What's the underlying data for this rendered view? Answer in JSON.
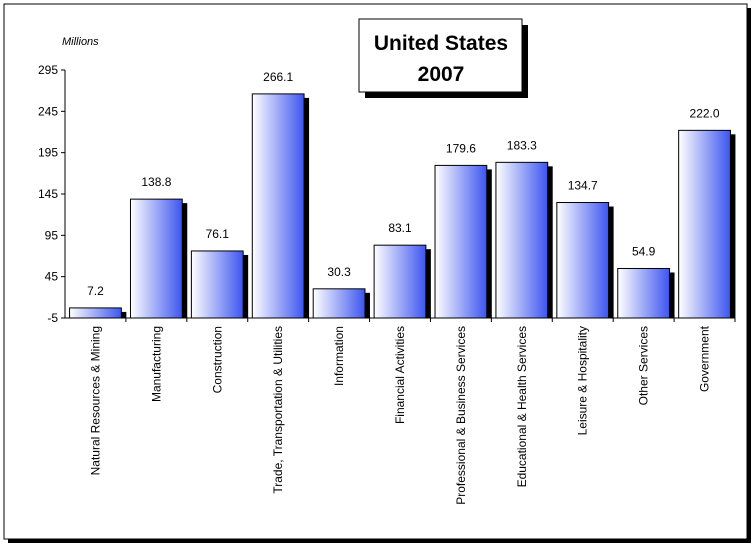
{
  "chart_data": {
    "type": "bar",
    "title": "United States\n2007",
    "title_lines": [
      "United States",
      "2007"
    ],
    "ylabel": "Millions",
    "ylim": [
      -5,
      295
    ],
    "yticks": [
      -5,
      45,
      95,
      145,
      195,
      245,
      295
    ],
    "grid": false,
    "categories": [
      "Natural Resources & Mining",
      "Manufacturing",
      "Construction",
      "Trade, Transportation & Utilities",
      "Information",
      "Financial Activities",
      "Professional & Business Services",
      "Educational & Health Services",
      "Leisure & Hospitality",
      "Other Services",
      "Government"
    ],
    "values": [
      7.2,
      138.8,
      76.1,
      266.1,
      30.3,
      83.1,
      179.6,
      183.3,
      134.7,
      54.9,
      222.0
    ],
    "data_labels": [
      "7.2",
      "138.8",
      "76.1",
      "266.1",
      "30.3",
      "83.1",
      "179.6",
      "183.3",
      "134.7",
      "54.9",
      "222.0"
    ],
    "colors": {
      "bar_light": "#ffffff",
      "bar_dark": "#3d55f0",
      "shadow": "#000000",
      "axis": "#000000"
    }
  }
}
